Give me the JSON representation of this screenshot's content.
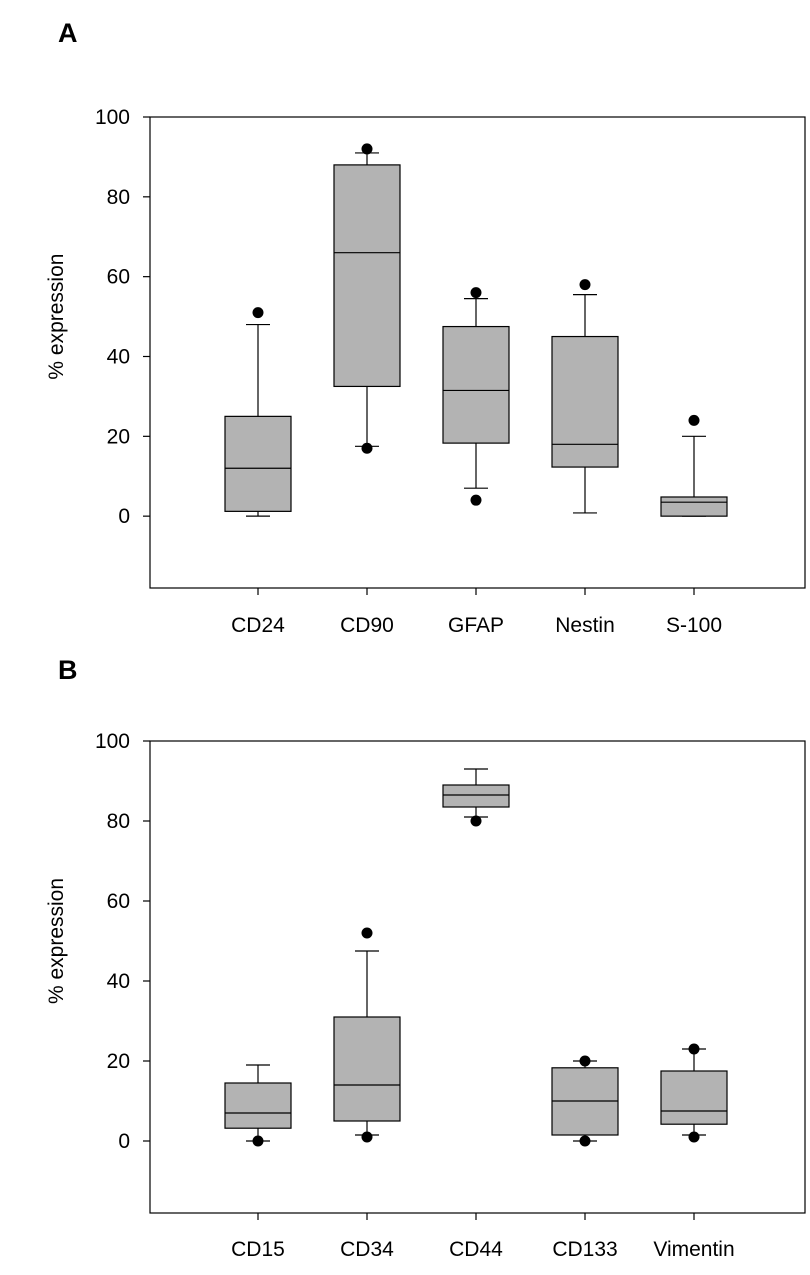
{
  "chart_data": [
    {
      "type": "box",
      "panel_label": "A",
      "ylabel": "% expression",
      "xlabel": "",
      "ylim": [
        -18,
        100
      ],
      "yticks": [
        0,
        20,
        40,
        60,
        80,
        100
      ],
      "grid": false,
      "categories": [
        "CD24",
        "CD90",
        "GFAP",
        "Nestin",
        "S-100"
      ],
      "boxes": [
        {
          "category": "CD24",
          "whisker_low": 0,
          "q1": 1.2,
          "median": 12,
          "q3": 25,
          "whisker_high": 48,
          "outliers": [
            51
          ]
        },
        {
          "category": "CD90",
          "whisker_low": 17.5,
          "q1": 32.5,
          "median": 66,
          "q3": 88,
          "whisker_high": 91,
          "outliers": [
            17,
            92
          ]
        },
        {
          "category": "GFAP",
          "whisker_low": 7,
          "q1": 18.3,
          "median": 31.5,
          "q3": 47.5,
          "whisker_high": 54.5,
          "outliers": [
            4,
            56
          ]
        },
        {
          "category": "Nestin",
          "whisker_low": 0.8,
          "q1": 12.3,
          "median": 18,
          "q3": 45,
          "whisker_high": 55.5,
          "outliers": [
            58
          ]
        },
        {
          "category": "S-100",
          "whisker_low": 0,
          "q1": 0,
          "median": 3.5,
          "q3": 4.8,
          "whisker_high": 20,
          "outliers": [
            24
          ]
        }
      ],
      "box_color": "#b3b3b3"
    },
    {
      "type": "box",
      "panel_label": "B",
      "ylabel": "% expression",
      "xlabel": "",
      "ylim": [
        -18,
        100
      ],
      "yticks": [
        0,
        20,
        40,
        60,
        80,
        100
      ],
      "grid": false,
      "categories": [
        "CD15",
        "CD34",
        "CD44",
        "CD133",
        "Vimentin"
      ],
      "boxes": [
        {
          "category": "CD15",
          "whisker_low": 0,
          "q1": 3.2,
          "median": 7,
          "q3": 14.5,
          "whisker_high": 19,
          "outliers": [
            0
          ]
        },
        {
          "category": "CD34",
          "whisker_low": 1.5,
          "q1": 5,
          "median": 14,
          "q3": 31,
          "whisker_high": 47.5,
          "outliers": [
            1,
            52
          ]
        },
        {
          "category": "CD44",
          "whisker_low": 81,
          "q1": 83.5,
          "median": 86.5,
          "q3": 89,
          "whisker_high": 93,
          "outliers": [
            80
          ]
        },
        {
          "category": "CD133",
          "whisker_low": 0,
          "q1": 1.5,
          "median": 10,
          "q3": 18.3,
          "whisker_high": 20,
          "outliers": [
            0,
            20
          ]
        },
        {
          "category": "Vimentin",
          "whisker_low": 1.5,
          "q1": 4.2,
          "median": 7.5,
          "q3": 17.5,
          "whisker_high": 23,
          "outliers": [
            1,
            23
          ]
        }
      ],
      "box_color": "#b3b3b3"
    }
  ]
}
